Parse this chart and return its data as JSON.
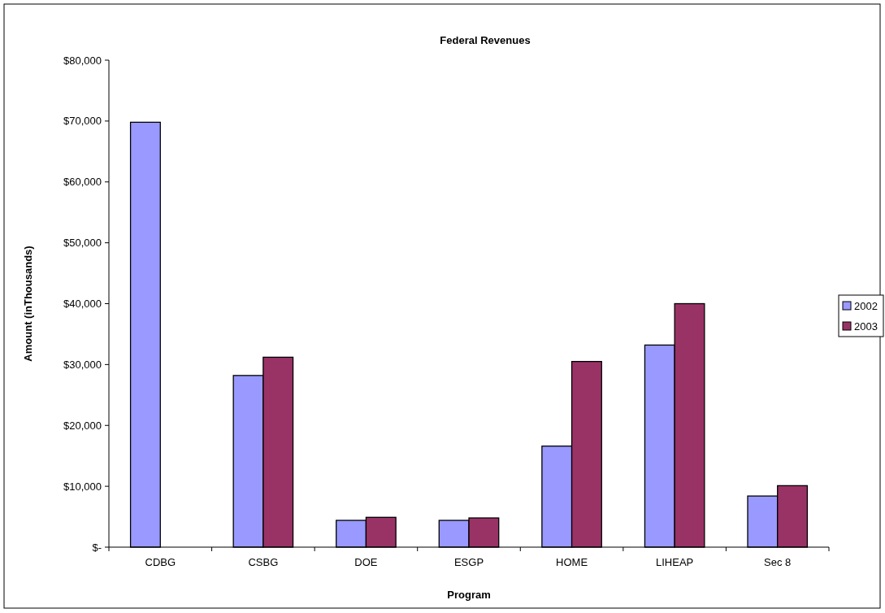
{
  "chart_data": {
    "type": "bar",
    "title": "Federal Revenues",
    "xlabel": "Program",
    "ylabel": "Amount (inThousands)",
    "categories": [
      "CDBG",
      "CSBG",
      "DOE",
      "ESGP",
      "HOME",
      "LIHEAP",
      "Sec 8"
    ],
    "series": [
      {
        "name": "2002",
        "color": "#9999ff",
        "values": [
          69800,
          28200,
          4400,
          4400,
          16600,
          33200,
          8400
        ]
      },
      {
        "name": "2003",
        "color": "#993366",
        "values": [
          null,
          31200,
          4900,
          4800,
          30500,
          40000,
          10100
        ]
      }
    ],
    "ylim": [
      0,
      80000
    ],
    "yticks": [
      {
        "value": 0,
        "label": "$-"
      },
      {
        "value": 10000,
        "label": "$10,000"
      },
      {
        "value": 20000,
        "label": "$20,000"
      },
      {
        "value": 30000,
        "label": "$30,000"
      },
      {
        "value": 40000,
        "label": "$40,000"
      },
      {
        "value": 50000,
        "label": "$50,000"
      },
      {
        "value": 60000,
        "label": "$60,000"
      },
      {
        "value": 70000,
        "label": "$70,000"
      },
      {
        "value": 80000,
        "label": "$80,000"
      }
    ],
    "grid": false,
    "legend": "right"
  }
}
